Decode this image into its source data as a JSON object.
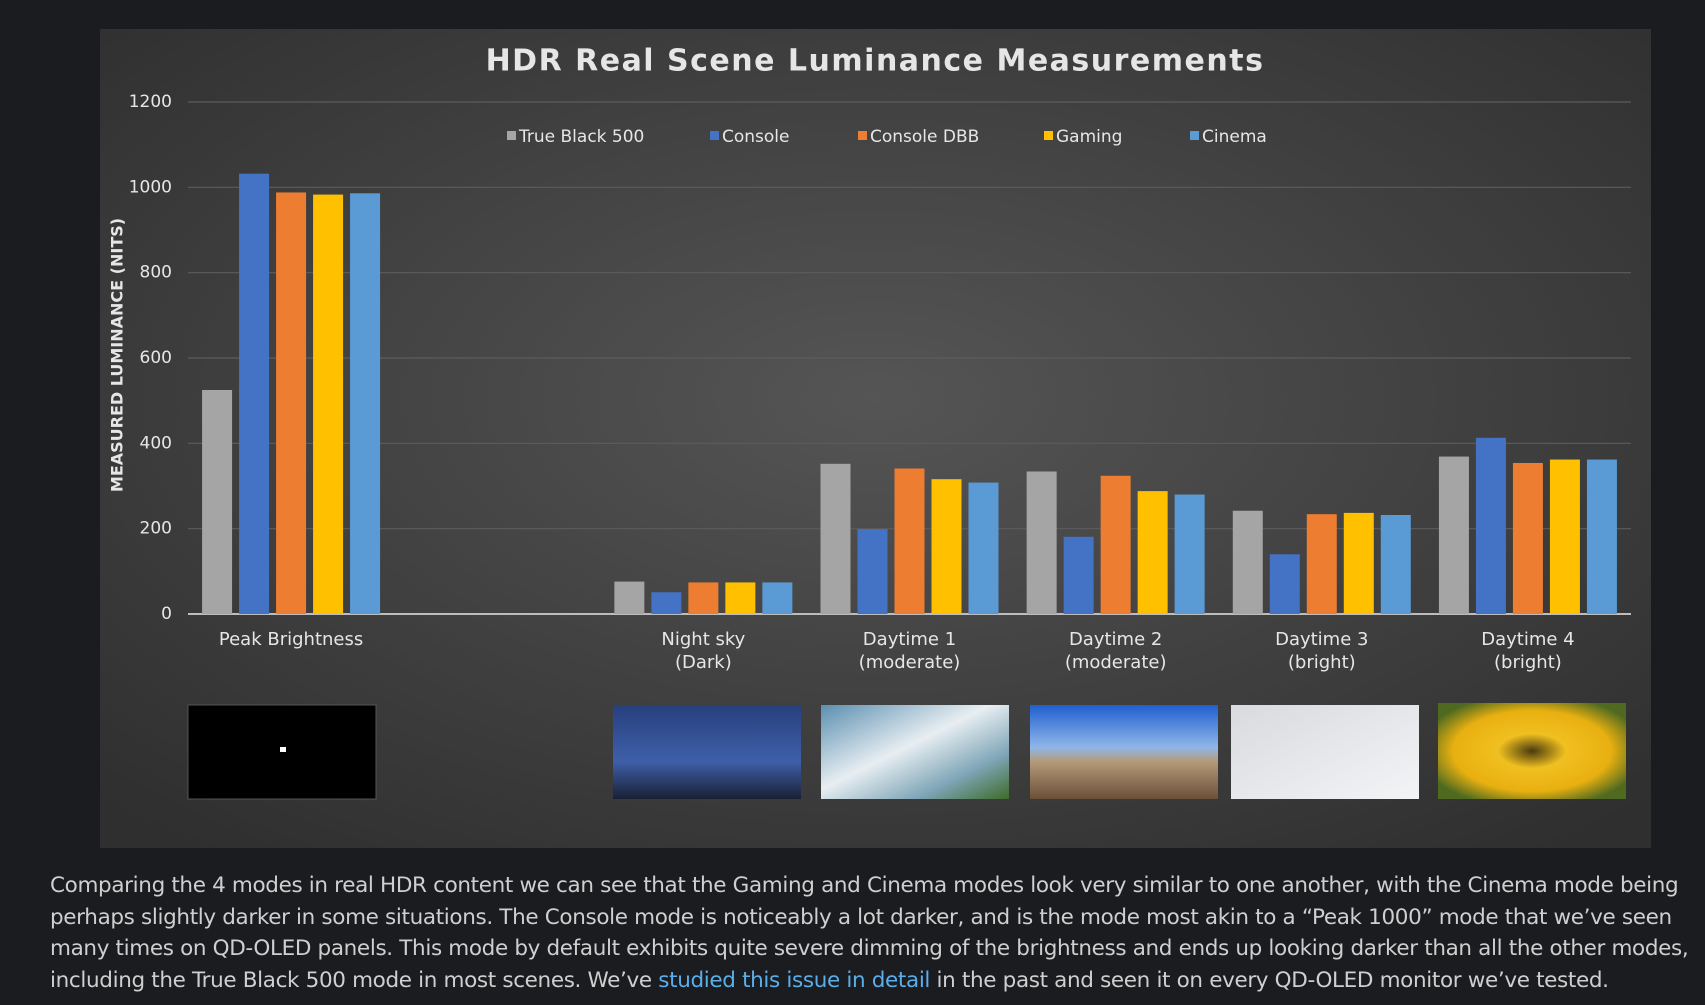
{
  "chart_data": {
    "type": "bar",
    "title": "HDR Real Scene Luminance Measurements",
    "y_label": "MEASURED LUMINANCE (NITS)",
    "categories": [
      [
        "Peak Brightness"
      ],
      null,
      [
        "Night sky",
        "(Dark)"
      ],
      [
        "Daytime 1",
        "(moderate)"
      ],
      [
        "Daytime 2",
        "(moderate)"
      ],
      [
        "Daytime 3",
        "(bright)"
      ],
      [
        "Daytime 4",
        "(bright)"
      ]
    ],
    "series": [
      {
        "name": "True Black 500",
        "color": "#a5a5a5",
        "values": [
          525,
          null,
          76,
          352,
          334,
          242,
          369
        ]
      },
      {
        "name": "Console",
        "color": "#4472c4",
        "values": [
          1032,
          null,
          51,
          199,
          181,
          140,
          413
        ]
      },
      {
        "name": "Console DBB",
        "color": "#ed7d31",
        "values": [
          988,
          null,
          74,
          341,
          324,
          234,
          354
        ]
      },
      {
        "name": "Gaming",
        "color": "#ffc000",
        "values": [
          983,
          null,
          74,
          316,
          288,
          237,
          362
        ]
      },
      {
        "name": "Cinema",
        "color": "#5b9bd5",
        "values": [
          986,
          null,
          74,
          308,
          280,
          232,
          362
        ]
      }
    ],
    "ylim": [
      0,
      1200
    ],
    "yticks": [
      0,
      200,
      400,
      600,
      800,
      1000,
      1200
    ],
    "grid": true,
    "legend": "top"
  },
  "article": {
    "paragraph": {
      "before": "Comparing the 4 modes in real HDR content we can see that the Gaming and Cinema modes look very similar to one another, with the Cinema mode being perhaps slightly darker in some situations. The Console mode is noticeably a lot darker, and is the mode most akin to a “Peak 1000” mode that we’ve seen many times on QD-OLED panels. This mode by default exhibits quite severe dimming of the brightness and ends up looking darker than all the other modes, including the True Black 500 mode in most scenes. We’ve ",
      "link": "studied this issue in detail",
      "after": " in the past and seen it on every QD-OLED monitor we’ve tested."
    }
  }
}
